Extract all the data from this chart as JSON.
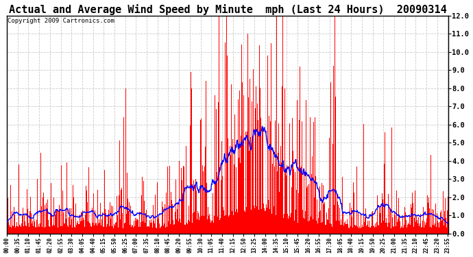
{
  "title": "Actual and Average Wind Speed by Minute  mph (Last 24 Hours)  20090314",
  "copyright": "Copyright 2009 Cartronics.com",
  "ylim": [
    0.0,
    12.0
  ],
  "yticks": [
    0.0,
    1.0,
    2.0,
    3.0,
    4.0,
    5.0,
    6.0,
    7.0,
    8.0,
    9.0,
    10.0,
    11.0,
    12.0
  ],
  "bar_color": "#FF0000",
  "line_color": "#0000FF",
  "background_color": "#FFFFFF",
  "grid_color": "#BBBBBB",
  "title_fontsize": 11,
  "copyright_fontsize": 6.5,
  "xtick_labels": [
    "00:00",
    "00:35",
    "01:10",
    "01:45",
    "02:20",
    "02:55",
    "03:30",
    "04:05",
    "04:40",
    "05:15",
    "05:50",
    "06:25",
    "07:00",
    "07:35",
    "08:10",
    "08:45",
    "09:20",
    "09:55",
    "10:30",
    "11:05",
    "11:40",
    "12:15",
    "12:50",
    "13:25",
    "14:00",
    "14:35",
    "15:10",
    "15:45",
    "16:20",
    "16:55",
    "17:30",
    "18:05",
    "18:40",
    "19:15",
    "19:50",
    "20:25",
    "21:00",
    "21:35",
    "22:10",
    "22:45",
    "23:20",
    "23:55"
  ],
  "n_minutes": 1440
}
